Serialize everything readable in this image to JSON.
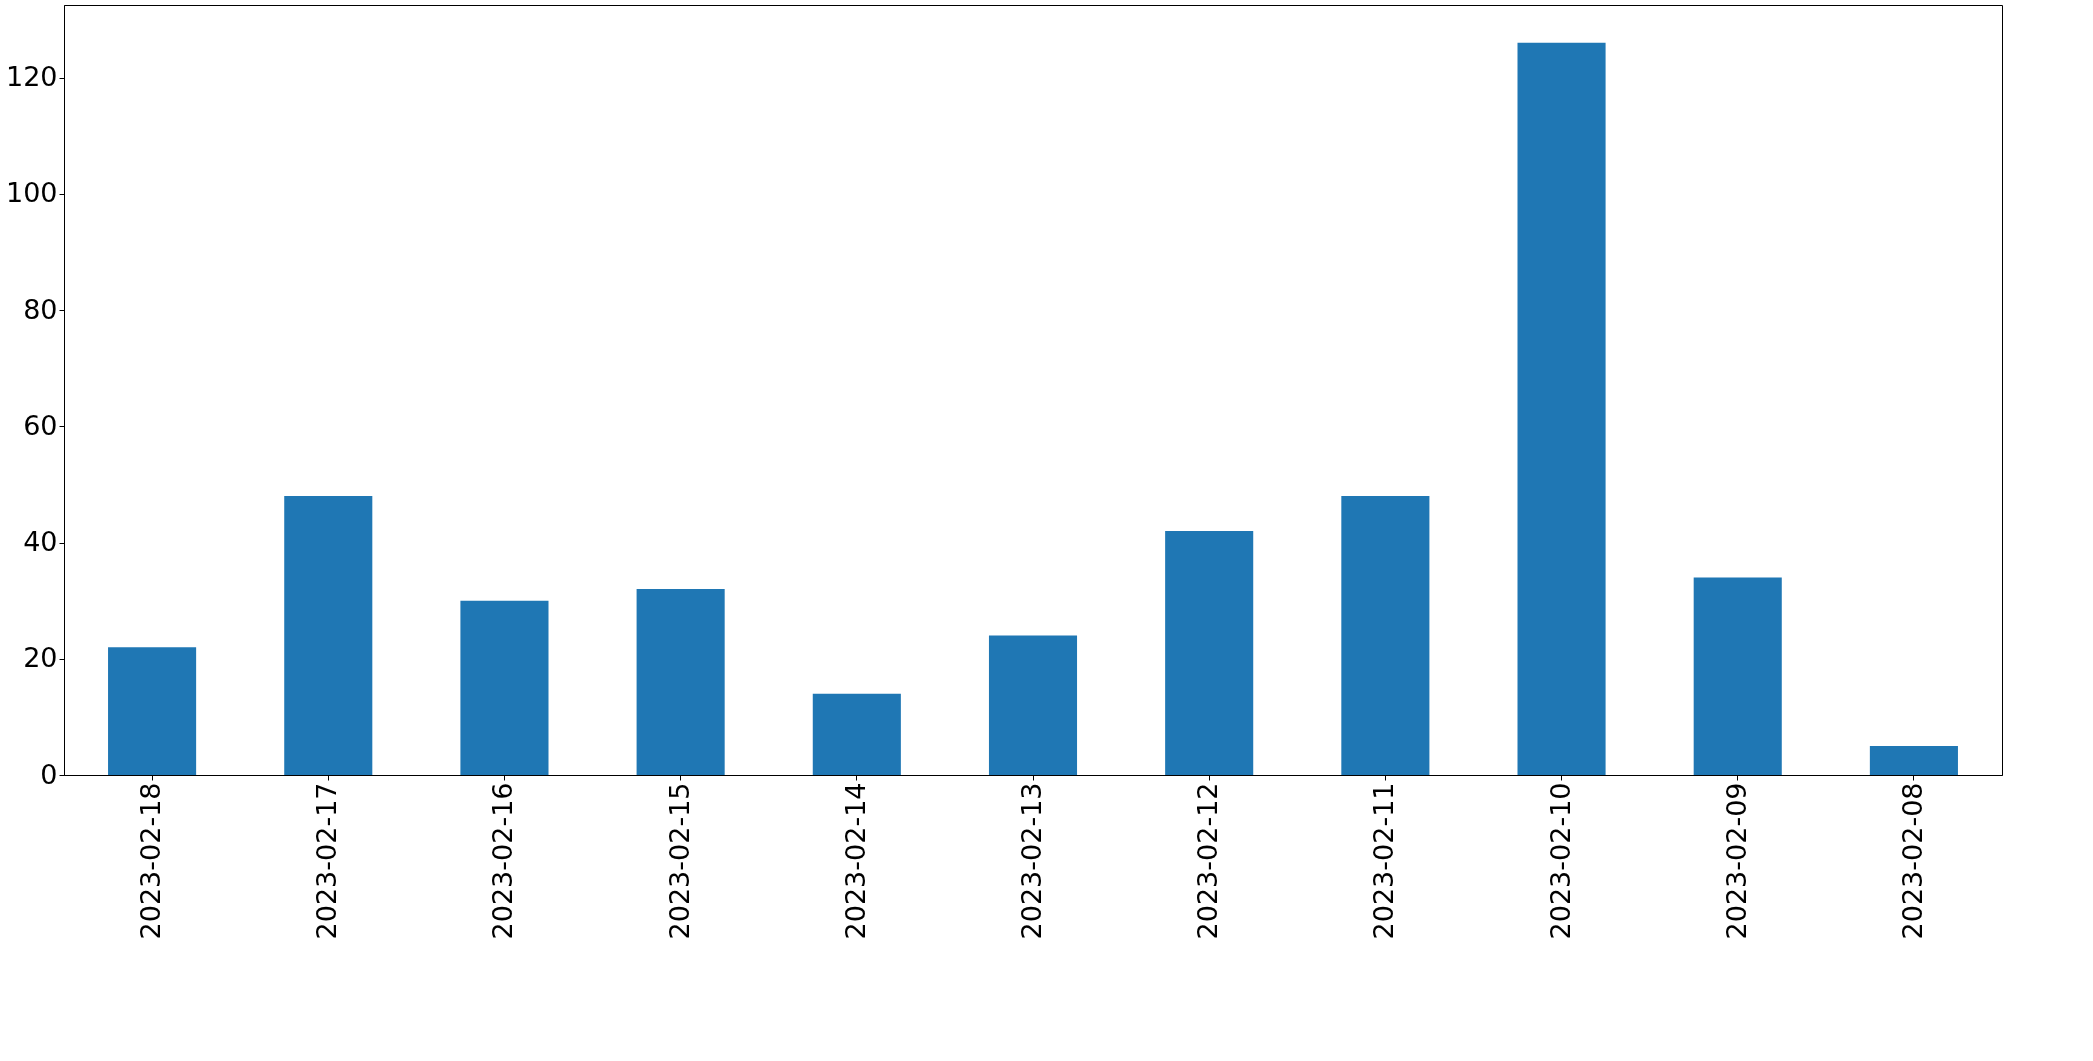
{
  "chart_data": {
    "type": "bar",
    "categories": [
      "2023-02-18",
      "2023-02-17",
      "2023-02-16",
      "2023-02-15",
      "2023-02-14",
      "2023-02-13",
      "2023-02-12",
      "2023-02-11",
      "2023-02-10",
      "2023-02-09",
      "2023-02-08"
    ],
    "values": [
      22,
      48,
      30,
      32,
      14,
      24,
      42,
      48,
      126,
      34,
      5
    ],
    "color": "#1f77b4",
    "ylim": [
      0,
      132.5
    ],
    "yticks": [
      0,
      20,
      40,
      60,
      80,
      100,
      120
    ],
    "grid": false
  }
}
